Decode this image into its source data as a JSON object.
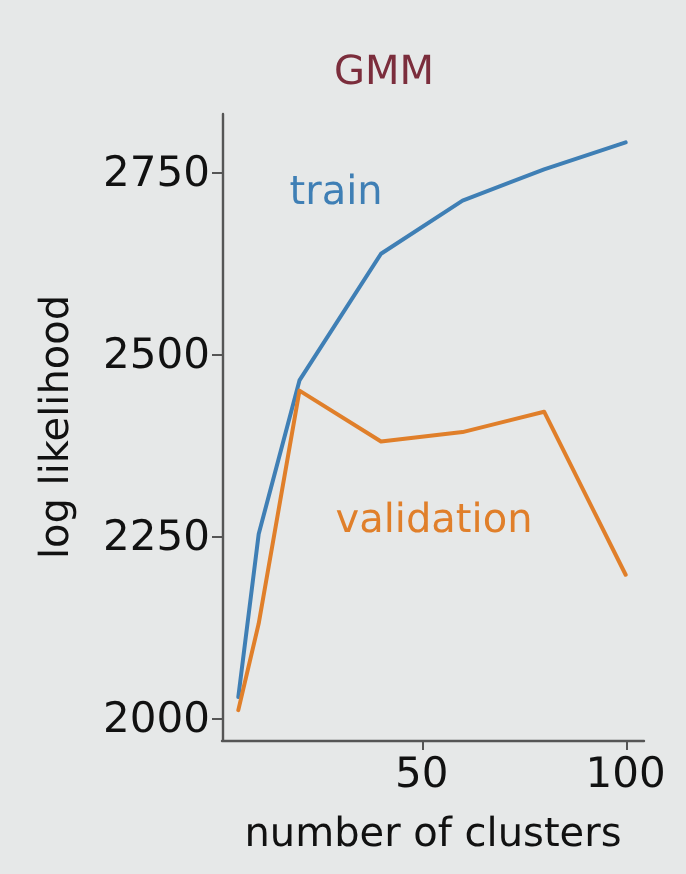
{
  "chart_data": {
    "type": "line",
    "title": "GMM",
    "xlabel": "number of clusters",
    "ylabel": "log likelihood",
    "x": [
      5,
      10,
      20,
      40,
      60,
      80,
      100
    ],
    "series": [
      {
        "name": "train",
        "color": "#3f7fb5",
        "values": [
          2029,
          2253,
          2464,
          2638,
          2711,
          2754,
          2791
        ]
      },
      {
        "name": "validation",
        "color": "#e07f2a",
        "values": [
          2011,
          2130,
          2450,
          2380,
          2393,
          2421,
          2197
        ]
      }
    ],
    "xlim": [
      1,
      104.5
    ],
    "xticks": [
      50,
      100
    ],
    "ylim": [
      1970,
      2830
    ],
    "yticks": [
      2000,
      2250,
      2500,
      2750
    ],
    "grid": false,
    "legend": false,
    "marker": "none",
    "line_style": "solid"
  }
}
